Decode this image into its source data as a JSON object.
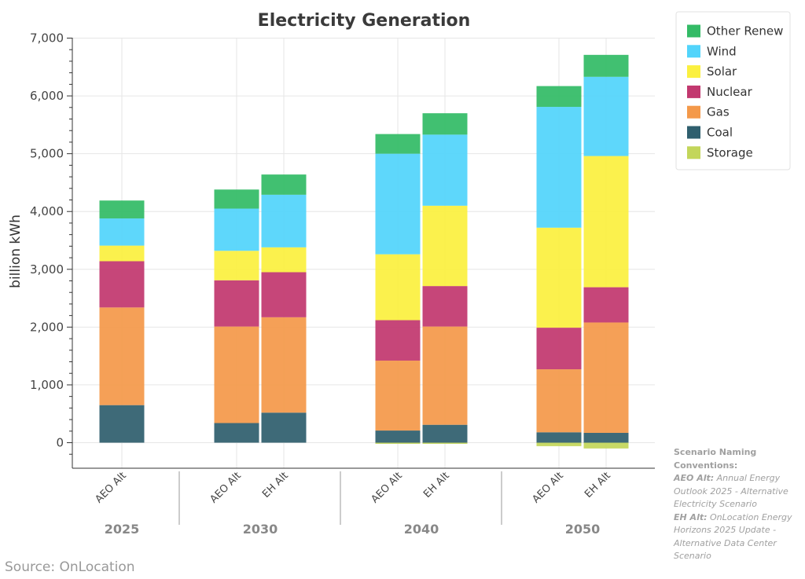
{
  "chart_data": {
    "type": "bar",
    "stacked": true,
    "title": "Electricity Generation",
    "ylabel": "billion kWh",
    "ylim": [
      -300,
      7000
    ],
    "yticks": [
      0,
      1000,
      2000,
      3000,
      4000,
      5000,
      6000,
      7000
    ],
    "ytick_labels": [
      "0",
      "1,000",
      "2,000",
      "3,000",
      "4,000",
      "5,000",
      "6,000",
      "7,000"
    ],
    "grid": true,
    "legend_position": "top-right",
    "groups": [
      "2025",
      "2030",
      "2040",
      "2050"
    ],
    "categories": [
      {
        "group": "2025",
        "label": "AEO Alt"
      },
      {
        "group": "2030",
        "label": "AEO Alt"
      },
      {
        "group": "2030",
        "label": "EH Alt"
      },
      {
        "group": "2040",
        "label": "AEO Alt"
      },
      {
        "group": "2040",
        "label": "EH Alt"
      },
      {
        "group": "2050",
        "label": "AEO Alt"
      },
      {
        "group": "2050",
        "label": "EH Alt"
      }
    ],
    "series": [
      {
        "name": "Storage",
        "color": "#c3d65a",
        "values": [
          0,
          0,
          0,
          -20,
          -20,
          -60,
          -100
        ]
      },
      {
        "name": "Coal",
        "color": "#2f5f6e",
        "values": [
          650,
          340,
          520,
          210,
          310,
          180,
          170
        ]
      },
      {
        "name": "Gas",
        "color": "#f4994a",
        "values": [
          1690,
          1670,
          1650,
          1210,
          1700,
          1090,
          1910
        ]
      },
      {
        "name": "Nuclear",
        "color": "#c2386f",
        "values": [
          800,
          800,
          780,
          700,
          700,
          720,
          610
        ]
      },
      {
        "name": "Solar",
        "color": "#fbf03f",
        "values": [
          270,
          510,
          430,
          1140,
          1390,
          1730,
          2270
        ]
      },
      {
        "name": "Wind",
        "color": "#52d4fb",
        "values": [
          470,
          730,
          910,
          1740,
          1230,
          2090,
          1370
        ]
      },
      {
        "name": "Other Renew",
        "color": "#33bb66",
        "values": [
          310,
          330,
          350,
          340,
          370,
          360,
          380
        ]
      }
    ],
    "legend_order": [
      "Other Renew",
      "Wind",
      "Solar",
      "Nuclear",
      "Gas",
      "Coal",
      "Storage"
    ]
  },
  "source": "Source: OnLocation",
  "notes": {
    "heading": "Scenario Naming Conventions:",
    "items": [
      {
        "term": "AEO Alt:",
        "text": "Annual Energy Outlook 2025 - Alternative Electricity Scenario"
      },
      {
        "term": "EH Alt:",
        "text": "OnLocation Energy Horizons 2025 Update - Alternative Data Center Scenario"
      }
    ]
  }
}
